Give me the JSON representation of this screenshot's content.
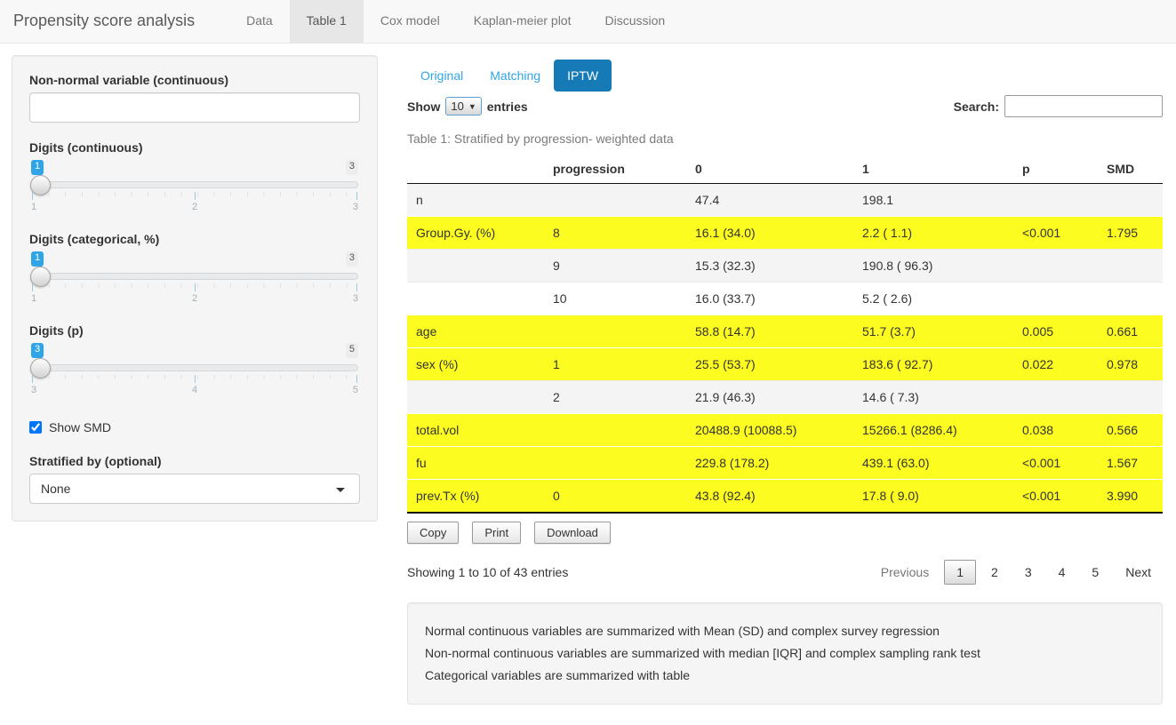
{
  "colors": {
    "pill_active_bg": "#157ab5",
    "link_blue": "#2fa4e7",
    "highlight_yellow": "#fcfc21",
    "navbar_bg": "#f8f8f8"
  },
  "navbar": {
    "brand": "Propensity score analysis",
    "tabs": [
      {
        "label": "Data",
        "active": false
      },
      {
        "label": "Table 1",
        "active": true
      },
      {
        "label": "Cox model",
        "active": false
      },
      {
        "label": "Kaplan-meier plot",
        "active": false
      },
      {
        "label": "Discussion",
        "active": false
      }
    ]
  },
  "sidebar": {
    "nonnormal_label": "Non-normal variable (continuous)",
    "nonnormal_value": "",
    "sliders": [
      {
        "label": "Digits (continuous)",
        "value": "1",
        "max": "3",
        "ticks": [
          "1",
          "2",
          "3"
        ]
      },
      {
        "label": "Digits (categorical, %)",
        "value": "1",
        "max": "3",
        "ticks": [
          "1",
          "2",
          "3"
        ]
      },
      {
        "label": "Digits (p)",
        "value": "3",
        "max": "5",
        "ticks": [
          "3",
          "4",
          "5"
        ]
      }
    ],
    "show_smd_label": "Show SMD",
    "show_smd_checked": true,
    "stratified_label": "Stratified by (optional)",
    "stratified_value": "None"
  },
  "main": {
    "pills": [
      {
        "label": "Original",
        "active": false
      },
      {
        "label": "Matching",
        "active": false
      },
      {
        "label": "IPTW",
        "active": true
      }
    ],
    "show_entries": {
      "prefix": "Show",
      "value": "10",
      "suffix": "entries"
    },
    "search_label": "Search:",
    "search_value": "",
    "caption": "Table 1: Stratified by progression- weighted data",
    "table": {
      "columns": [
        "",
        "progression",
        "0",
        "1",
        "p",
        "SMD"
      ],
      "rows": [
        {
          "cells": [
            "n",
            "",
            "47.4",
            "198.1",
            "",
            ""
          ],
          "highlight": false
        },
        {
          "cells": [
            "Group.Gy. (%)",
            "8",
            "16.1 (34.0)",
            "2.2 ( 1.1)",
            "<0.001",
            "1.795"
          ],
          "highlight": true
        },
        {
          "cells": [
            "",
            "9",
            "15.3 (32.3)",
            "190.8 ( 96.3)",
            "",
            ""
          ],
          "highlight": false
        },
        {
          "cells": [
            "",
            "10",
            "16.0 (33.7)",
            "5.2 ( 2.6)",
            "",
            ""
          ],
          "highlight": false
        },
        {
          "cells": [
            "age",
            "",
            "58.8 (14.7)",
            "51.7 (3.7)",
            "0.005",
            "0.661"
          ],
          "highlight": true
        },
        {
          "cells": [
            "sex (%)",
            "1",
            "25.5 (53.7)",
            "183.6 ( 92.7)",
            "0.022",
            "0.978"
          ],
          "highlight": true
        },
        {
          "cells": [
            "",
            "2",
            "21.9 (46.3)",
            "14.6 ( 7.3)",
            "",
            ""
          ],
          "highlight": false
        },
        {
          "cells": [
            "total.vol",
            "",
            "20488.9 (10088.5)",
            "15266.1 (8286.4)",
            "0.038",
            "0.566"
          ],
          "highlight": true
        },
        {
          "cells": [
            "fu",
            "",
            "229.8 (178.2)",
            "439.1 (63.0)",
            "<0.001",
            "1.567"
          ],
          "highlight": true
        },
        {
          "cells": [
            "prev.Tx (%)",
            "0",
            "43.8 (92.4)",
            "17.8 ( 9.0)",
            "<0.001",
            "3.990"
          ],
          "highlight": true
        }
      ]
    },
    "buttons": [
      "Copy",
      "Print",
      "Download"
    ],
    "info": "Showing 1 to 10 of 43 entries",
    "pagination": {
      "previous": "Previous",
      "pages": [
        "1",
        "2",
        "3",
        "4",
        "5"
      ],
      "current": "1",
      "next": "Next"
    },
    "notes": [
      "Normal continuous variables are summarized with Mean (SD) and complex survey regression",
      "Non-normal continuous variables are summarized with median [IQR] and complex sampling rank test",
      "Categorical variables are summarized with table"
    ]
  }
}
